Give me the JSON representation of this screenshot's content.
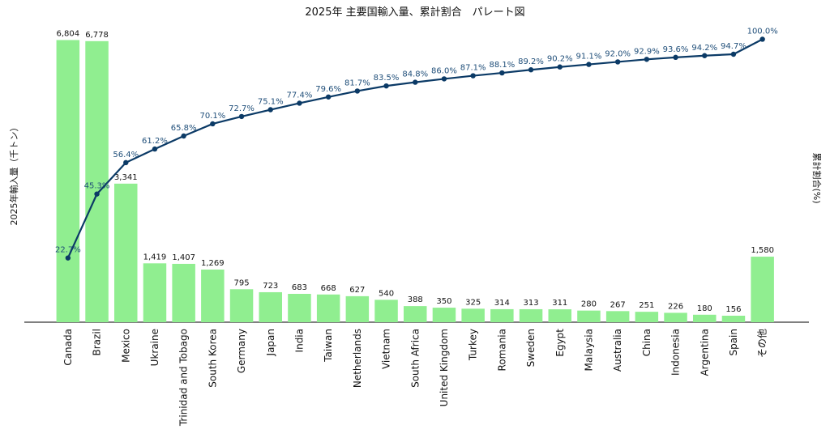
{
  "chart_data": {
    "type": "bar",
    "title": "2025年 主要国輸入量、累計割合　パレート図",
    "ylabel": "2025年輸入量（千トン）",
    "y2label": "累計割合(%)",
    "categories": [
      "Canada",
      "Brazil",
      "Mexico",
      "Ukraine",
      "Trinidad and Tobago",
      "South Korea",
      "Germany",
      "Japan",
      "India",
      "Taiwan",
      "Netherlands",
      "Vietnam",
      "South Africa",
      "United Kingdom",
      "Turkey",
      "Romania",
      "Sweden",
      "Egypt",
      "Malaysia",
      "Australia",
      "China",
      "Indonesia",
      "Argentina",
      "Spain",
      "その他"
    ],
    "series": [
      {
        "kind": "bar",
        "values": [
          6804,
          6778,
          3341,
          1419,
          1407,
          1269,
          795,
          723,
          683,
          668,
          627,
          540,
          388,
          350,
          325,
          314,
          313,
          311,
          280,
          267,
          251,
          226,
          180,
          156,
          1580
        ],
        "value_labels": [
          "6,804",
          "6,778",
          "3,341",
          "1,419",
          "1,407",
          "1,269",
          "795",
          "723",
          "683",
          "668",
          "627",
          "540",
          "388",
          "350",
          "325",
          "314",
          "313",
          "311",
          "280",
          "267",
          "251",
          "226",
          "180",
          "156",
          "1,580"
        ],
        "color": "#90ee90"
      },
      {
        "kind": "line",
        "values": [
          22.7,
          45.3,
          56.4,
          61.2,
          65.8,
          70.1,
          72.7,
          75.1,
          77.4,
          79.6,
          81.7,
          83.5,
          84.8,
          86.0,
          87.1,
          88.1,
          89.2,
          90.2,
          91.1,
          92.0,
          92.9,
          93.6,
          94.2,
          94.7,
          100.0
        ],
        "value_labels": [
          "22.7%",
          "45.3%",
          "56.4%",
          "61.2%",
          "65.8%",
          "70.1%",
          "72.7%",
          "75.1%",
          "77.4%",
          "79.6%",
          "81.7%",
          "83.5%",
          "84.8%",
          "86.0%",
          "87.1%",
          "88.1%",
          "89.2%",
          "90.2%",
          "91.1%",
          "92.0%",
          "92.9%",
          "93.6%",
          "94.2%",
          "94.7%",
          "100.0%"
        ],
        "color": "#0b3a66"
      }
    ],
    "ylim": [
      0,
      6950
    ],
    "y2lim": [
      0,
      105
    ],
    "grid": false
  }
}
